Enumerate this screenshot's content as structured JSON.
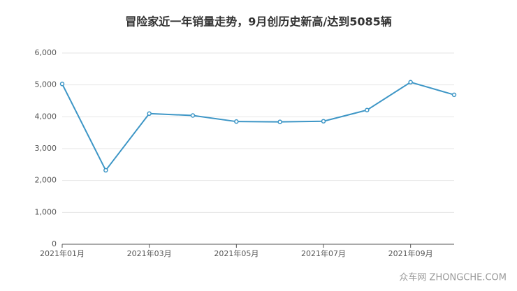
{
  "chart_data": {
    "type": "line",
    "title": "冒险家近一年销量走势，9月创历史新高/达到5085辆",
    "categories": [
      "2021年01月",
      null,
      "2021年03月",
      null,
      "2021年05月",
      null,
      "2021年07月",
      null,
      "2021年09月",
      null
    ],
    "series": [
      {
        "name": "销量",
        "color": "#3d96c6",
        "values": [
          5030,
          2320,
          4100,
          4040,
          3850,
          3840,
          3860,
          4210,
          5085,
          4690
        ]
      }
    ],
    "ylim": [
      0,
      6000
    ],
    "yticks": [
      0,
      {
        "value": 1000,
        "label": "1,000"
      },
      {
        "value": 2000,
        "label": "2,000"
      },
      {
        "value": 3000,
        "label": "3,000"
      },
      {
        "value": 4000,
        "label": "4,000"
      },
      {
        "value": 5000,
        "label": "5,000"
      },
      {
        "value": 6000,
        "label": "6,000"
      }
    ],
    "grid": true
  },
  "watermark": "众车网 ZHONGCHE.COM"
}
